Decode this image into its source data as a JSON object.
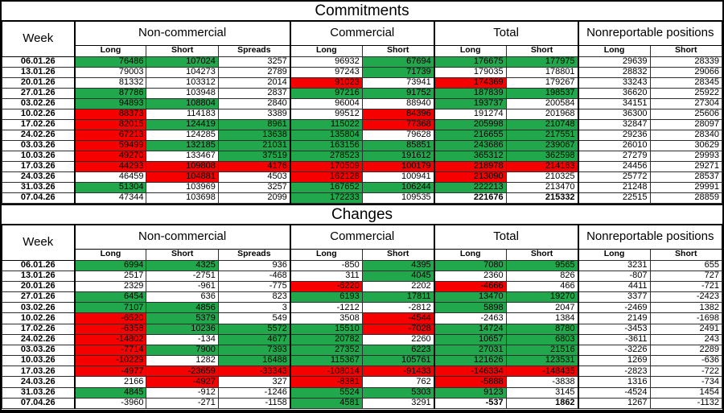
{
  "titles": {
    "commitments": "Commitments",
    "changes": "Changes"
  },
  "header": {
    "week": "Week",
    "groups": [
      {
        "label": "Non-commercial",
        "cols": [
          "Long",
          "Short",
          "Spreads"
        ]
      },
      {
        "label": "Commercial",
        "cols": [
          "Long",
          "Short"
        ]
      },
      {
        "label": "Total",
        "cols": [
          "Long",
          "Short"
        ]
      },
      {
        "label": "Nonreportable positions",
        "cols": [
          "Long",
          "Short"
        ]
      }
    ]
  },
  "colors": {
    "green": "#21a84c",
    "red": "#f60000"
  },
  "commitments": {
    "rows": [
      {
        "week": "06.01.26",
        "cells": [
          {
            "v": "76486",
            "c": "g"
          },
          {
            "v": "107024",
            "c": "g"
          },
          {
            "v": "3257"
          },
          {
            "v": "96932"
          },
          {
            "v": "67694",
            "c": "g"
          },
          {
            "v": "176675",
            "c": "g"
          },
          {
            "v": "177975",
            "c": "g"
          },
          {
            "v": "29639"
          },
          {
            "v": "28339"
          }
        ]
      },
      {
        "week": "13.01.26",
        "cells": [
          {
            "v": "79003"
          },
          {
            "v": "104273"
          },
          {
            "v": "2789"
          },
          {
            "v": "97243"
          },
          {
            "v": "71739",
            "c": "g"
          },
          {
            "v": "179035"
          },
          {
            "v": "178801"
          },
          {
            "v": "28832"
          },
          {
            "v": "29066"
          }
        ]
      },
      {
        "week": "20.01.26",
        "cells": [
          {
            "v": "81332"
          },
          {
            "v": "103312"
          },
          {
            "v": "2014"
          },
          {
            "v": "91023",
            "c": "r"
          },
          {
            "v": "73941"
          },
          {
            "v": "174369",
            "c": "r"
          },
          {
            "v": "179267"
          },
          {
            "v": "33243"
          },
          {
            "v": "28345"
          }
        ]
      },
      {
        "week": "27.01.26",
        "cells": [
          {
            "v": "87786",
            "c": "g"
          },
          {
            "v": "103948"
          },
          {
            "v": "2837"
          },
          {
            "v": "97216",
            "c": "g"
          },
          {
            "v": "91752",
            "c": "g"
          },
          {
            "v": "187839",
            "c": "g"
          },
          {
            "v": "198537",
            "c": "g"
          },
          {
            "v": "36620"
          },
          {
            "v": "25922"
          }
        ]
      },
      {
        "week": "03.02.26",
        "cells": [
          {
            "v": "94893",
            "c": "g"
          },
          {
            "v": "108804",
            "c": "g"
          },
          {
            "v": "2840"
          },
          {
            "v": "96004"
          },
          {
            "v": "88940"
          },
          {
            "v": "193737",
            "c": "g"
          },
          {
            "v": "200584"
          },
          {
            "v": "34151"
          },
          {
            "v": "27304"
          }
        ]
      },
      {
        "week": "10.02.26",
        "cells": [
          {
            "v": "88373",
            "c": "r"
          },
          {
            "v": "114183"
          },
          {
            "v": "3389"
          },
          {
            "v": "99512"
          },
          {
            "v": "84396",
            "c": "r"
          },
          {
            "v": "191274"
          },
          {
            "v": "201968"
          },
          {
            "v": "36300"
          },
          {
            "v": "25606"
          }
        ]
      },
      {
        "week": "17.02.26",
        "cells": [
          {
            "v": "82015",
            "c": "r"
          },
          {
            "v": "124419",
            "c": "g"
          },
          {
            "v": "8961",
            "c": "g"
          },
          {
            "v": "115022",
            "c": "g"
          },
          {
            "v": "77368",
            "c": "r"
          },
          {
            "v": "205998",
            "c": "g"
          },
          {
            "v": "210748",
            "c": "g"
          },
          {
            "v": "32847"
          },
          {
            "v": "28097"
          }
        ]
      },
      {
        "week": "24.02.26",
        "cells": [
          {
            "v": "67213",
            "c": "r"
          },
          {
            "v": "124285"
          },
          {
            "v": "13638",
            "c": "g"
          },
          {
            "v": "135804",
            "c": "g"
          },
          {
            "v": "79628"
          },
          {
            "v": "216655",
            "c": "g"
          },
          {
            "v": "217551",
            "c": "g"
          },
          {
            "v": "29236"
          },
          {
            "v": "28340"
          }
        ]
      },
      {
        "week": "03.03.26",
        "cells": [
          {
            "v": "59499",
            "c": "r"
          },
          {
            "v": "132185",
            "c": "g"
          },
          {
            "v": "21031",
            "c": "g"
          },
          {
            "v": "163156",
            "c": "g"
          },
          {
            "v": "85851",
            "c": "g"
          },
          {
            "v": "243686",
            "c": "g"
          },
          {
            "v": "239067",
            "c": "g"
          },
          {
            "v": "26010"
          },
          {
            "v": "30629"
          }
        ]
      },
      {
        "week": "10.03.26",
        "cells": [
          {
            "v": "49270",
            "c": "r"
          },
          {
            "v": "133467"
          },
          {
            "v": "37519",
            "c": "g"
          },
          {
            "v": "278523",
            "c": "g"
          },
          {
            "v": "191612",
            "c": "g"
          },
          {
            "v": "365312",
            "c": "g"
          },
          {
            "v": "362598",
            "c": "g"
          },
          {
            "v": "27279"
          },
          {
            "v": "29993"
          }
        ]
      },
      {
        "week": "17.03.26",
        "cells": [
          {
            "v": "44293",
            "c": "r"
          },
          {
            "v": "109808",
            "c": "r"
          },
          {
            "v": "4176",
            "c": "r"
          },
          {
            "v": "170509",
            "c": "r"
          },
          {
            "v": "100179",
            "c": "r"
          },
          {
            "v": "218978",
            "c": "r"
          },
          {
            "v": "214163",
            "c": "r"
          },
          {
            "v": "24456"
          },
          {
            "v": "29271"
          }
        ]
      },
      {
        "week": "24.03.26",
        "cells": [
          {
            "v": "46459"
          },
          {
            "v": "104881",
            "c": "r"
          },
          {
            "v": "4503"
          },
          {
            "v": "162128",
            "c": "r"
          },
          {
            "v": "100941"
          },
          {
            "v": "213090",
            "c": "r"
          },
          {
            "v": "210325"
          },
          {
            "v": "25772"
          },
          {
            "v": "28537"
          }
        ]
      },
      {
        "week": "31.03.26",
        "cells": [
          {
            "v": "51304",
            "c": "g"
          },
          {
            "v": "103969"
          },
          {
            "v": "3257"
          },
          {
            "v": "167652",
            "c": "g"
          },
          {
            "v": "106244",
            "c": "g"
          },
          {
            "v": "222213",
            "c": "g"
          },
          {
            "v": "213470"
          },
          {
            "v": "21248"
          },
          {
            "v": "29991"
          }
        ]
      },
      {
        "week": "07.04.26",
        "cells": [
          {
            "v": "47344"
          },
          {
            "v": "103698"
          },
          {
            "v": "2099"
          },
          {
            "v": "172233",
            "c": "g"
          },
          {
            "v": "109535"
          },
          {
            "v": "221676",
            "b": true
          },
          {
            "v": "215332",
            "b": true
          },
          {
            "v": "22515"
          },
          {
            "v": "28859"
          }
        ]
      }
    ]
  },
  "changes": {
    "rows": [
      {
        "week": "06.01.26",
        "cells": [
          {
            "v": "6994",
            "c": "g"
          },
          {
            "v": "4325",
            "c": "g"
          },
          {
            "v": "936"
          },
          {
            "v": "-850"
          },
          {
            "v": "4395",
            "c": "g"
          },
          {
            "v": "7080",
            "c": "g"
          },
          {
            "v": "9565",
            "c": "g"
          },
          {
            "v": "3231"
          },
          {
            "v": "655"
          }
        ]
      },
      {
        "week": "13.01.26",
        "cells": [
          {
            "v": "2517"
          },
          {
            "v": "-2751"
          },
          {
            "v": "-468"
          },
          {
            "v": "311"
          },
          {
            "v": "4045",
            "c": "g"
          },
          {
            "v": "2360"
          },
          {
            "v": "826"
          },
          {
            "v": "-807"
          },
          {
            "v": "727"
          }
        ]
      },
      {
        "week": "20.01.26",
        "cells": [
          {
            "v": "2329"
          },
          {
            "v": "-961"
          },
          {
            "v": "-775"
          },
          {
            "v": "-6220",
            "c": "r"
          },
          {
            "v": "2202"
          },
          {
            "v": "-4666",
            "c": "r"
          },
          {
            "v": "466"
          },
          {
            "v": "4411"
          },
          {
            "v": "-721"
          }
        ]
      },
      {
        "week": "27.01.26",
        "cells": [
          {
            "v": "6454",
            "c": "g"
          },
          {
            "v": "636"
          },
          {
            "v": "823"
          },
          {
            "v": "6193",
            "c": "g"
          },
          {
            "v": "17811",
            "c": "g"
          },
          {
            "v": "13470",
            "c": "g"
          },
          {
            "v": "19270",
            "c": "g"
          },
          {
            "v": "3377"
          },
          {
            "v": "-2423"
          }
        ]
      },
      {
        "week": "03.02.26",
        "cells": [
          {
            "v": "7107",
            "c": "g"
          },
          {
            "v": "4856",
            "c": "g"
          },
          {
            "v": "3"
          },
          {
            "v": "-1212"
          },
          {
            "v": "-2812"
          },
          {
            "v": "5898",
            "c": "g"
          },
          {
            "v": "2047"
          },
          {
            "v": "-2469"
          },
          {
            "v": "1382"
          }
        ]
      },
      {
        "week": "10.02.26",
        "cells": [
          {
            "v": "-6520",
            "c": "r"
          },
          {
            "v": "5379",
            "c": "g"
          },
          {
            "v": "549"
          },
          {
            "v": "3508"
          },
          {
            "v": "-4544",
            "c": "r"
          },
          {
            "v": "-2463"
          },
          {
            "v": "1384"
          },
          {
            "v": "2149"
          },
          {
            "v": "-1698"
          }
        ]
      },
      {
        "week": "17.02.26",
        "cells": [
          {
            "v": "-6358",
            "c": "r"
          },
          {
            "v": "10236",
            "c": "g"
          },
          {
            "v": "5572",
            "c": "g"
          },
          {
            "v": "15510",
            "c": "g"
          },
          {
            "v": "-7028",
            "c": "r"
          },
          {
            "v": "14724",
            "c": "g"
          },
          {
            "v": "8780",
            "c": "g"
          },
          {
            "v": "-3453"
          },
          {
            "v": "2491"
          }
        ]
      },
      {
        "week": "24.02.26",
        "cells": [
          {
            "v": "-14802",
            "c": "r"
          },
          {
            "v": "-134"
          },
          {
            "v": "4677",
            "c": "g"
          },
          {
            "v": "20782",
            "c": "g"
          },
          {
            "v": "2260"
          },
          {
            "v": "10657",
            "c": "g"
          },
          {
            "v": "6803",
            "c": "g"
          },
          {
            "v": "-3611"
          },
          {
            "v": "243"
          }
        ]
      },
      {
        "week": "03.03.26",
        "cells": [
          {
            "v": "-7714",
            "c": "r"
          },
          {
            "v": "7900",
            "c": "g"
          },
          {
            "v": "7393",
            "c": "g"
          },
          {
            "v": "27352",
            "c": "g"
          },
          {
            "v": "6223",
            "c": "g"
          },
          {
            "v": "27031",
            "c": "g"
          },
          {
            "v": "21516",
            "c": "g"
          },
          {
            "v": "-3226"
          },
          {
            "v": "2289"
          }
        ]
      },
      {
        "week": "10.03.26",
        "cells": [
          {
            "v": "-10229",
            "c": "r"
          },
          {
            "v": "1282"
          },
          {
            "v": "16488",
            "c": "g"
          },
          {
            "v": "115367",
            "c": "g"
          },
          {
            "v": "105761",
            "c": "g"
          },
          {
            "v": "121626",
            "c": "g"
          },
          {
            "v": "123531",
            "c": "g"
          },
          {
            "v": "1269"
          },
          {
            "v": "-636"
          }
        ]
      },
      {
        "week": "17.03.26",
        "cells": [
          {
            "v": "-4977",
            "c": "r"
          },
          {
            "v": "-23659",
            "c": "r"
          },
          {
            "v": "-33343",
            "c": "r"
          },
          {
            "v": "-108014",
            "c": "r"
          },
          {
            "v": "-91433",
            "c": "r"
          },
          {
            "v": "-146334",
            "c": "r"
          },
          {
            "v": "-148435",
            "c": "r"
          },
          {
            "v": "-2823"
          },
          {
            "v": "-722"
          }
        ]
      },
      {
        "week": "24.03.26",
        "cells": [
          {
            "v": "2166"
          },
          {
            "v": "-4927",
            "c": "r"
          },
          {
            "v": "327"
          },
          {
            "v": "-8381",
            "c": "r"
          },
          {
            "v": "762"
          },
          {
            "v": "-5888",
            "c": "r"
          },
          {
            "v": "-3838"
          },
          {
            "v": "1316"
          },
          {
            "v": "-734"
          }
        ]
      },
      {
        "week": "31.03.26",
        "cells": [
          {
            "v": "4845",
            "c": "g"
          },
          {
            "v": "-912"
          },
          {
            "v": "-1246"
          },
          {
            "v": "5524",
            "c": "g"
          },
          {
            "v": "5303",
            "c": "g"
          },
          {
            "v": "9123",
            "c": "g"
          },
          {
            "v": "3145"
          },
          {
            "v": "-4524"
          },
          {
            "v": "1454"
          }
        ]
      },
      {
        "week": "07.04.26",
        "cells": [
          {
            "v": "-3960"
          },
          {
            "v": "-271"
          },
          {
            "v": "-1158"
          },
          {
            "v": "4581",
            "c": "g"
          },
          {
            "v": "3291"
          },
          {
            "v": "-537",
            "b": true
          },
          {
            "v": "1862",
            "b": true
          },
          {
            "v": "1267"
          },
          {
            "v": "-1132"
          }
        ]
      }
    ]
  }
}
